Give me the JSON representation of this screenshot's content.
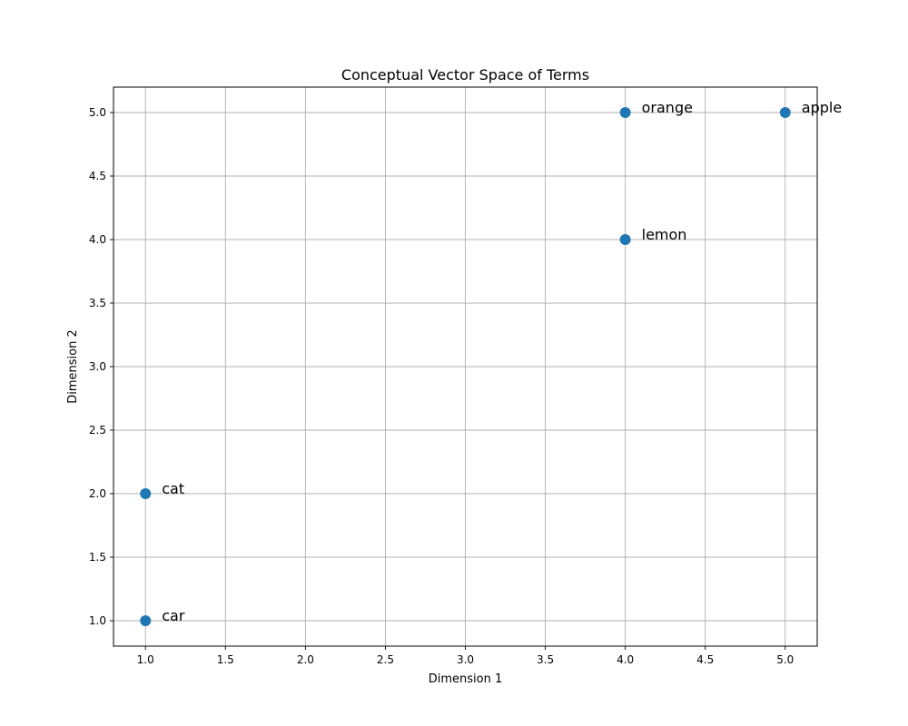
{
  "chart_data": {
    "type": "scatter",
    "title": "Conceptual Vector Space of Terms",
    "xlabel": "Dimension 1",
    "ylabel": "Dimension 2",
    "xlim": [
      0.8,
      5.2
    ],
    "ylim": [
      0.8,
      5.2
    ],
    "xticks": [
      "1.0",
      "1.5",
      "2.0",
      "2.5",
      "3.0",
      "3.5",
      "4.0",
      "4.5",
      "5.0"
    ],
    "yticks": [
      "1.0",
      "1.5",
      "2.0",
      "2.5",
      "3.0",
      "3.5",
      "4.0",
      "4.5",
      "5.0"
    ],
    "grid": true,
    "marker_color": "#1f77b4",
    "points": [
      {
        "label": "apple",
        "x": 5,
        "y": 5
      },
      {
        "label": "orange",
        "x": 4,
        "y": 5
      },
      {
        "label": "lemon",
        "x": 4,
        "y": 4
      },
      {
        "label": "cat",
        "x": 1,
        "y": 2
      },
      {
        "label": "car",
        "x": 1,
        "y": 1
      }
    ]
  }
}
